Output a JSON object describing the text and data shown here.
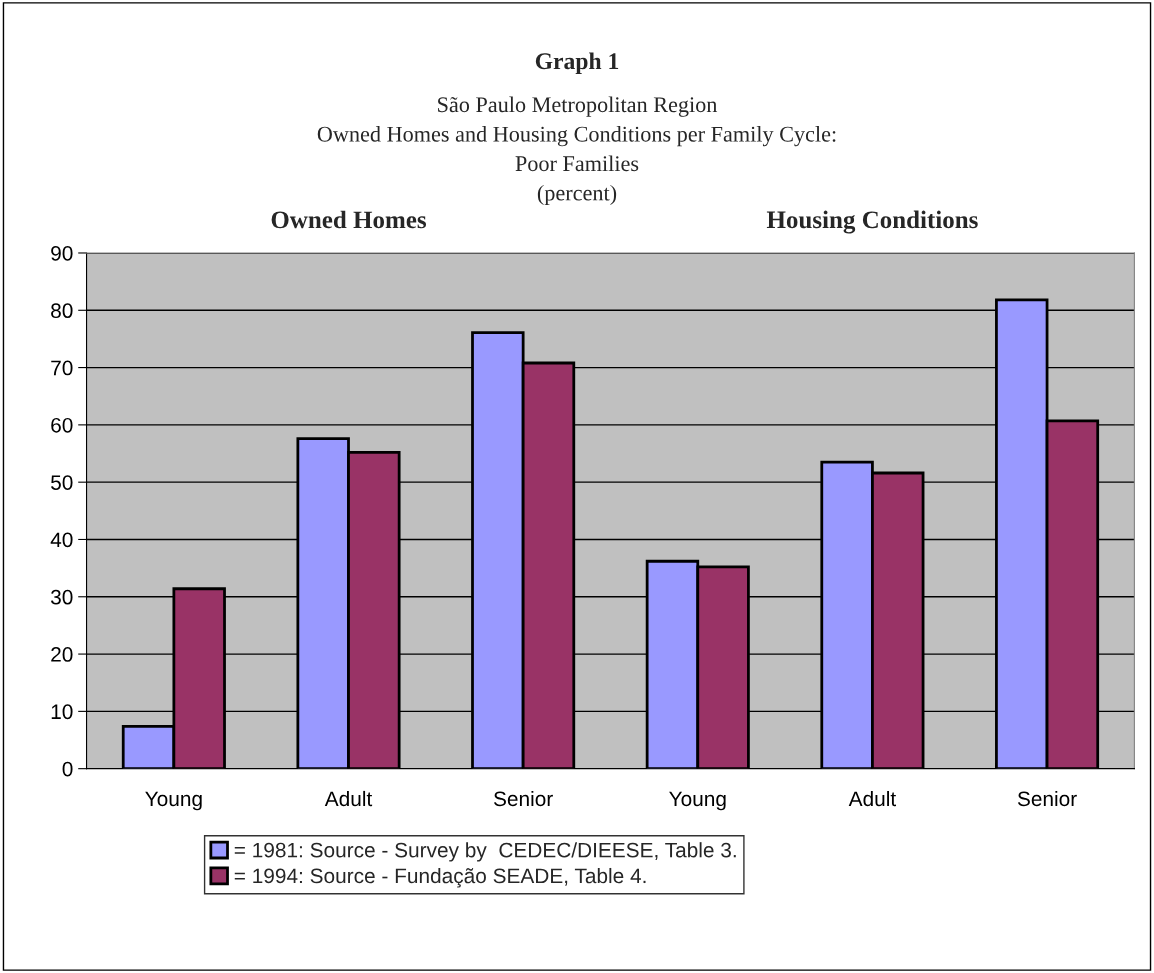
{
  "chart_data": {
    "type": "bar",
    "title": "Graph 1",
    "subtitle": "São Paulo Metropolitan Region\nOwned Homes and Housing Conditions per Family Cycle:\nPoor Families\n(percent)",
    "annotations": [
      "Owned Homes",
      "Housing Conditions"
    ],
    "categories": [
      "Young",
      "Adult",
      "Senior",
      "Young",
      "Adult",
      "Senior"
    ],
    "series": [
      {
        "name": "= 1981: Source - Survey by  CEDEC/DIEESE, Table 3.",
        "color": "#9999ff",
        "values": [
          7.4,
          57.6,
          76.1,
          36.2,
          53.5,
          81.8
        ]
      },
      {
        "name": "= 1994: Source - Fundação SEADE, Table 4.",
        "color": "#993366",
        "values": [
          31.4,
          55.2,
          70.8,
          35.2,
          51.6,
          60.7
        ]
      }
    ],
    "ylim": [
      0,
      90
    ],
    "yticks": [
      0,
      10,
      20,
      30,
      40,
      50,
      60,
      70,
      80,
      90
    ],
    "grid": "y",
    "legend": "bottom"
  }
}
